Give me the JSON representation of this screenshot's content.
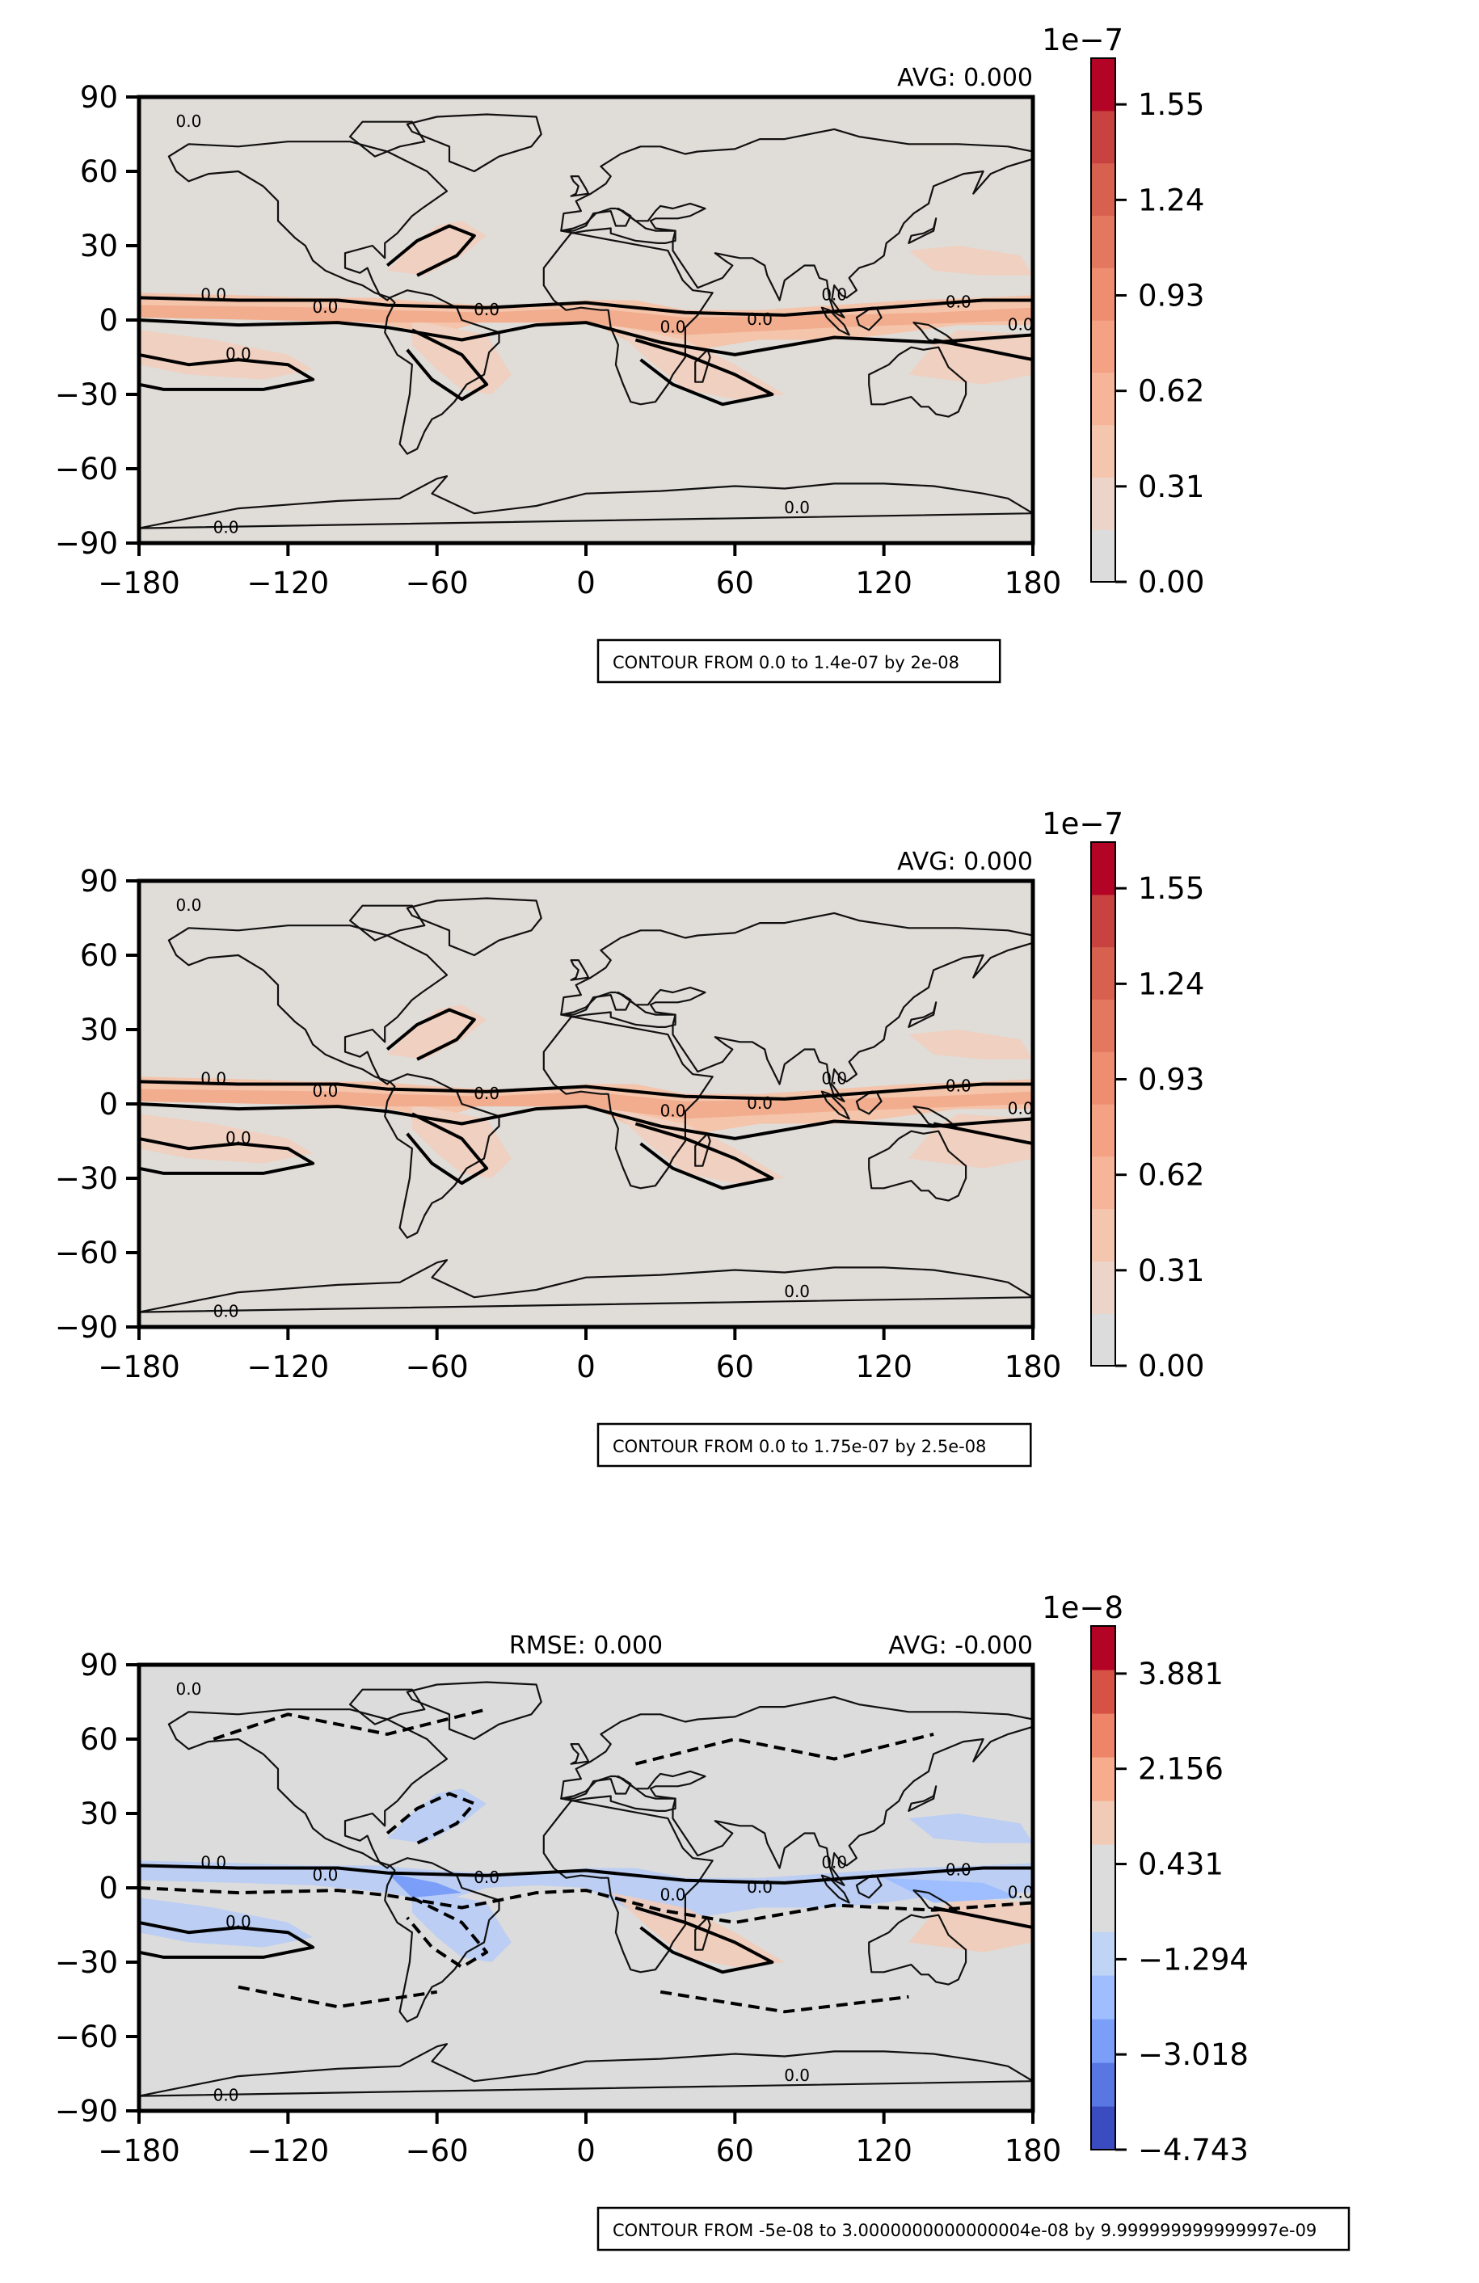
{
  "chart_data": [
    {
      "type": "heatmap",
      "subtitle_right": "AVG: 0.000",
      "subtitle_left": "",
      "contour_note": "CONTOUR FROM 0.0 to 1.4e-07 by 2e-08",
      "xticks": [
        "−180",
        "−120",
        "−60",
        "0",
        "60",
        "120",
        "180"
      ],
      "yticks": [
        "90",
        "60",
        "30",
        "0",
        "−30",
        "−60",
        "−90"
      ],
      "xlim": [
        -180,
        180
      ],
      "ylim": [
        -90,
        90
      ],
      "contour_label": "0.0",
      "colorbar": {
        "exponent": "1e−7",
        "ticks": [
          "1.55",
          "1.24",
          "0.93",
          "0.62",
          "0.31",
          "0.00"
        ],
        "range": [
          0,
          1.7
        ],
        "colors": [
          "#dddcdc",
          "#ecd5c8",
          "#f4c6ad",
          "#f6b598",
          "#f4a283",
          "#ee8d70",
          "#e4785f",
          "#d7604f",
          "#c84240",
          "#b40426"
        ]
      }
    },
    {
      "type": "heatmap",
      "subtitle_right": "AVG: 0.000",
      "subtitle_left": "",
      "contour_note": "CONTOUR FROM 0.0 to 1.75e-07 by 2.5e-08",
      "xticks": [
        "−180",
        "−120",
        "−60",
        "0",
        "60",
        "120",
        "180"
      ],
      "yticks": [
        "90",
        "60",
        "30",
        "0",
        "−30",
        "−60",
        "−90"
      ],
      "xlim": [
        -180,
        180
      ],
      "ylim": [
        -90,
        90
      ],
      "contour_label": "0.0",
      "colorbar": {
        "exponent": "1e−7",
        "ticks": [
          "1.55",
          "1.24",
          "0.93",
          "0.62",
          "0.31",
          "0.00"
        ],
        "range": [
          0,
          1.7
        ],
        "colors": [
          "#dddcdc",
          "#ecd5c8",
          "#f4c6ad",
          "#f6b598",
          "#f4a283",
          "#ee8d70",
          "#e4785f",
          "#d7604f",
          "#c84240",
          "#b40426"
        ]
      }
    },
    {
      "type": "heatmap",
      "subtitle_right": "AVG: -0.000",
      "subtitle_left": "RMSE: 0.000",
      "contour_note": "CONTOUR FROM -5e-08 to 3.0000000000000004e-08 by 9.999999999999997e-09",
      "xticks": [
        "−180",
        "−120",
        "−60",
        "0",
        "60",
        "120",
        "180"
      ],
      "yticks": [
        "90",
        "60",
        "30",
        "0",
        "−30",
        "−60",
        "−90"
      ],
      "xlim": [
        -180,
        180
      ],
      "ylim": [
        -90,
        90
      ],
      "contour_label": "0.0",
      "colorbar": {
        "exponent": "1e−8",
        "ticks": [
          "3.881",
          "2.156",
          "0.431",
          "−1.294",
          "−3.018",
          "−4.743"
        ],
        "range": [
          -4.743,
          4.743
        ],
        "colors": [
          "#3b4cc0",
          "#5977e3",
          "#7b9ff9",
          "#9ebeff",
          "#c0d4f5",
          "#dddcdc",
          "#dddcdc",
          "#f2cbb7",
          "#f7ac8e",
          "#ee8468",
          "#d65244",
          "#b40426"
        ]
      }
    }
  ]
}
